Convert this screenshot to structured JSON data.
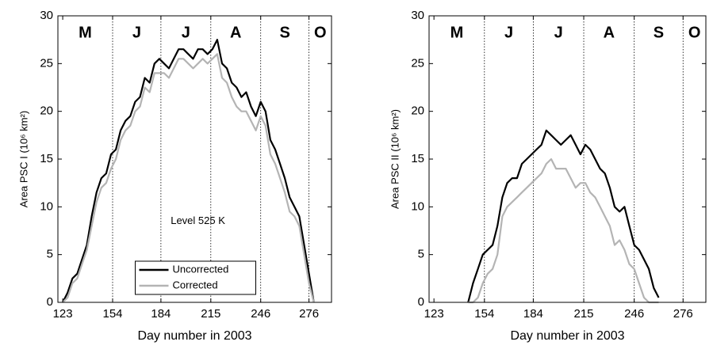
{
  "chart_data": [
    {
      "type": "line",
      "y_label": "Area PSC I (10⁶ km²)",
      "x_label": "Day number in 2003",
      "annotation": "Level 525 K",
      "month_labels": [
        "M",
        "J",
        "J",
        "A",
        "S",
        "O"
      ],
      "xlim": [
        120,
        290
      ],
      "xticks": [
        123,
        154,
        184,
        215,
        246,
        276
      ],
      "ylim": [
        0,
        30
      ],
      "yticks": [
        0,
        5,
        10,
        15,
        20,
        25,
        30
      ],
      "grid": "x-dotted",
      "legend": "lower center",
      "x": [
        123,
        126,
        129,
        132,
        135,
        138,
        141,
        144,
        147,
        150,
        153,
        156,
        159,
        162,
        165,
        168,
        171,
        174,
        177,
        180,
        183,
        186,
        189,
        192,
        195,
        198,
        201,
        204,
        207,
        210,
        213,
        216,
        219,
        222,
        225,
        228,
        231,
        234,
        237,
        240,
        243,
        246,
        249,
        252,
        255,
        258,
        261,
        264,
        267,
        270,
        273,
        276,
        279
      ],
      "series": [
        {
          "name": "Uncorrected",
          "color": "#000000",
          "values": [
            0,
            1,
            2.5,
            3,
            4.5,
            6,
            9,
            11.5,
            13,
            13.5,
            15.5,
            16,
            18,
            19,
            19.5,
            21,
            21.5,
            23.5,
            23,
            25,
            25.5,
            25,
            24.5,
            25.5,
            26.5,
            26.5,
            26,
            25.5,
            26.5,
            26.5,
            26,
            26.5,
            27.5,
            25,
            24.5,
            23,
            22.5,
            21.5,
            22,
            20.5,
            19.5,
            21,
            20,
            17,
            16,
            14.5,
            13,
            11,
            10,
            9,
            6,
            3,
            0
          ]
        },
        {
          "name": "Corrected",
          "color": "#b4b4b4",
          "values": [
            0,
            0.5,
            2,
            2.5,
            4,
            5.5,
            8,
            10.5,
            12,
            12.5,
            14,
            15,
            17,
            18,
            18.5,
            20,
            20.5,
            22.5,
            22,
            24,
            24,
            24,
            23.5,
            24.5,
            25.5,
            25.5,
            25,
            24.5,
            25,
            25.5,
            25,
            25.5,
            26,
            23.5,
            23,
            21.5,
            20.5,
            20,
            20,
            19,
            18,
            19.5,
            18.5,
            15.5,
            14.5,
            13,
            11.5,
            9.5,
            9,
            8,
            5,
            2,
            0
          ]
        }
      ]
    },
    {
      "type": "line",
      "y_label": "Area PSC II (10⁶ km²)",
      "x_label": "Day number in 2003",
      "month_labels": [
        "M",
        "J",
        "J",
        "A",
        "S",
        "O"
      ],
      "xlim": [
        120,
        290
      ],
      "xticks": [
        123,
        154,
        184,
        215,
        246,
        276
      ],
      "ylim": [
        0,
        30
      ],
      "yticks": [
        0,
        5,
        10,
        15,
        20,
        25,
        30
      ],
      "grid": "x-dotted",
      "x": [
        144,
        147,
        150,
        153,
        156,
        159,
        162,
        165,
        168,
        171,
        174,
        177,
        180,
        183,
        186,
        189,
        192,
        195,
        198,
        201,
        204,
        207,
        210,
        213,
        216,
        219,
        222,
        225,
        228,
        231,
        234,
        237,
        240,
        243,
        246,
        249,
        252,
        255,
        258,
        261
      ],
      "series": [
        {
          "color": "#000000",
          "values": [
            0,
            2,
            3.5,
            5,
            5.5,
            6,
            8,
            11,
            12.5,
            13,
            13,
            14.5,
            15,
            15.5,
            16,
            16.5,
            18,
            17.5,
            17,
            16.5,
            17,
            17.5,
            16.5,
            15.5,
            16.5,
            16,
            15,
            14,
            13.5,
            12,
            10,
            9.5,
            10,
            8,
            6,
            5.5,
            4.5,
            3.5,
            1.5,
            0.5
          ]
        },
        {
          "color": "#b4b4b4",
          "values": [
            0,
            0,
            0.5,
            2,
            3,
            3.5,
            5,
            9,
            10,
            10.5,
            11,
            11.5,
            12,
            12.5,
            13,
            13.5,
            14.5,
            15,
            14,
            14,
            14,
            13,
            12,
            12.5,
            12.5,
            11.5,
            11,
            10,
            9,
            8,
            6,
            6.5,
            5.5,
            4,
            3.5,
            2,
            0.5,
            0,
            0,
            0
          ]
        }
      ]
    }
  ]
}
